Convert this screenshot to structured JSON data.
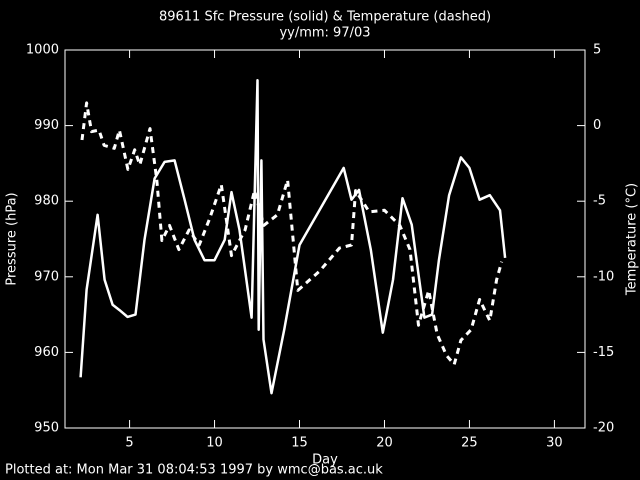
{
  "chart_data": {
    "type": "line",
    "title": "89611 Sfc Pressure (solid) & Temperature (dashed)",
    "subtitle": "yy/mm: 97/03",
    "xlabel": "Day",
    "ylabel": "Pressure (hPa)",
    "y2label": "Temperature (°C)",
    "footer": "Plotted at: Mon Mar 31 08:04:53 1997 by wmc@bas.ac.uk",
    "xlim": [
      1.2,
      31.8
    ],
    "xticks": [
      5,
      10,
      15,
      20,
      25,
      30
    ],
    "ylim": [
      950,
      1000
    ],
    "yticks": [
      950,
      960,
      970,
      980,
      990,
      1000
    ],
    "y2lim": [
      -20,
      5
    ],
    "y2ticks": [
      -20,
      -15,
      -10,
      -5,
      0,
      5
    ],
    "background": "#000000",
    "series": [
      {
        "color": "#ffffff",
        "style": "solid",
        "axis": "y",
        "x": [
          2.12,
          2.47,
          3.12,
          3.53,
          4.0,
          4.41,
          4.88,
          5.35,
          5.88,
          6.47,
          7.06,
          7.65,
          8.24,
          8.82,
          9.41,
          10.0,
          10.6,
          11.0,
          11.47,
          12.18,
          12.53,
          12.6,
          12.76,
          12.88,
          13.35,
          14.1,
          15.0,
          17.6,
          18.06,
          18.5,
          19.2,
          19.9,
          20.5,
          21.06,
          21.6,
          22.35,
          22.8,
          23.2,
          23.8,
          24.5,
          25.0,
          25.6,
          26.2,
          26.8,
          27.1
        ],
        "values": [
          956.7,
          968.3,
          978.2,
          969.6,
          966.3,
          965.6,
          964.7,
          965.0,
          974.9,
          983.0,
          985.2,
          985.4,
          980.2,
          974.9,
          972.2,
          972.2,
          974.9,
          981.2,
          976.2,
          964.6,
          996.0,
          963.0,
          985.4,
          961.7,
          954.6,
          963.0,
          974.2,
          984.4,
          980.2,
          981.5,
          973.5,
          962.6,
          969.6,
          980.4,
          976.9,
          964.6,
          965.0,
          972.2,
          980.8,
          985.8,
          984.4,
          980.2,
          980.8,
          978.8,
          972.5
        ]
      },
      {
        "color": "#ffffff",
        "style": "dashed",
        "axis": "y2",
        "x": [
          2.2,
          2.47,
          2.76,
          3.2,
          3.5,
          4.1,
          4.4,
          4.9,
          5.3,
          5.6,
          6.2,
          6.6,
          6.9,
          7.35,
          7.9,
          8.5,
          9.1,
          9.7,
          10.4,
          11.0,
          11.8,
          12.35,
          12.9,
          13.7,
          14.3,
          14.9,
          16.2,
          17.35,
          18.06,
          18.3,
          19.1,
          20.0,
          20.9,
          21.5,
          22.0,
          22.6,
          23.1,
          23.65,
          24.1,
          24.5,
          25.1,
          25.6,
          26.2,
          26.6,
          26.9
        ],
        "values": [
          -0.95,
          1.5,
          -0.4,
          -0.3,
          -1.3,
          -1.5,
          -0.3,
          -2.9,
          -1.6,
          -2.6,
          -0.2,
          -3.6,
          -7.6,
          -6.6,
          -8.2,
          -6.9,
          -7.9,
          -6.2,
          -3.9,
          -8.6,
          -6.9,
          -4.3,
          -6.6,
          -5.9,
          -3.6,
          -10.9,
          -9.6,
          -8.1,
          -7.9,
          -4.3,
          -5.7,
          -5.6,
          -6.6,
          -8.2,
          -13.2,
          -10.9,
          -13.8,
          -15.2,
          -15.8,
          -14.2,
          -13.5,
          -11.5,
          -12.9,
          -10.2,
          -9.0
        ]
      }
    ]
  }
}
